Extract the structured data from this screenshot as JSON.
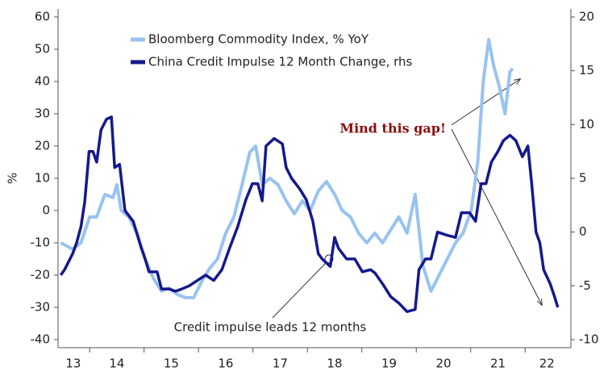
{
  "chart_data": {
    "type": "line",
    "ylabel": "%",
    "xlim": [
      13.42,
      22.84
    ],
    "xticks": [
      {
        "value": 13.7,
        "label": "13"
      },
      {
        "value": 14.5,
        "label": "14"
      },
      {
        "value": 15.5,
        "label": "15"
      },
      {
        "value": 16.5,
        "label": "16"
      },
      {
        "value": 17.5,
        "label": "17"
      },
      {
        "value": 18.5,
        "label": "18"
      },
      {
        "value": 19.5,
        "label": "19"
      },
      {
        "value": 20.5,
        "label": "20"
      },
      {
        "value": 21.5,
        "label": "21"
      },
      {
        "value": 22.4,
        "label": "22"
      }
    ],
    "xtick_marks": [
      14,
      15,
      16,
      17,
      18,
      19,
      20,
      21,
      22
    ],
    "ylim": [
      -42.5,
      62.5
    ],
    "yticks": [
      -40,
      -30,
      -20,
      -10,
      0,
      10,
      20,
      30,
      40,
      50,
      60
    ],
    "y2lim": [
      -10.75,
      20.75
    ],
    "y2ticks": [
      -10,
      -5,
      0,
      5,
      10,
      15,
      20
    ],
    "legend": "upper left",
    "annotations": [
      "Mind this gap!",
      "Credit impulse leads 12 months"
    ],
    "series": [
      {
        "name": "Bloomberg Commodity Index, % YoY",
        "color": "#98c3f0",
        "x": [
          13.47,
          13.69,
          13.84,
          14.0,
          14.13,
          14.28,
          14.43,
          14.5,
          14.58,
          14.72,
          14.87,
          15.02,
          15.17,
          15.32,
          15.46,
          15.61,
          15.76,
          15.91,
          16.06,
          16.2,
          16.35,
          16.5,
          16.65,
          16.8,
          16.94,
          17.05,
          17.17,
          17.31,
          17.46,
          17.61,
          17.76,
          17.91,
          18.05,
          18.2,
          18.35,
          18.5,
          18.64,
          18.79,
          18.94,
          19.09,
          19.24,
          19.38,
          19.53,
          19.68,
          19.83,
          19.98,
          20.12,
          20.27,
          20.42,
          20.57,
          20.72,
          20.86,
          21.01,
          21.13,
          21.23,
          21.33,
          21.42,
          21.53,
          21.63,
          21.72,
          21.77
        ],
        "values": [
          -10,
          -12,
          -10,
          -2,
          -2,
          5,
          4,
          8,
          0,
          -2,
          -7,
          -15,
          -21,
          -25,
          -24,
          -26,
          -27,
          -27,
          -22,
          -18,
          -15,
          -7,
          -2,
          8,
          18,
          20,
          8,
          10,
          8,
          3,
          -1,
          3,
          0,
          6,
          9,
          5,
          0,
          -2,
          -7,
          -10,
          -7,
          -10,
          -6,
          -2,
          -7,
          5,
          -17,
          -25,
          -20,
          -15,
          -10,
          -7,
          0,
          15,
          40,
          53,
          45,
          38,
          30,
          43,
          44
        ]
      },
      {
        "name": "China Credit Impulse 12 Month Change, rhs",
        "color": "#15198c",
        "axis": "y2",
        "x": [
          13.47,
          13.54,
          13.69,
          13.76,
          13.84,
          13.91,
          13.99,
          14.06,
          14.13,
          14.21,
          14.31,
          14.4,
          14.46,
          14.55,
          14.65,
          14.8,
          14.95,
          15.02,
          15.09,
          15.24,
          15.32,
          15.46,
          15.58,
          15.69,
          15.83,
          15.98,
          16.13,
          16.28,
          16.43,
          16.57,
          16.72,
          16.87,
          16.99,
          17.09,
          17.17,
          17.24,
          17.39,
          17.54,
          17.61,
          17.71,
          17.86,
          17.98,
          18.1,
          18.2,
          18.27,
          18.42,
          18.5,
          18.57,
          18.72,
          18.87,
          19.01,
          19.16,
          19.24,
          19.38,
          19.53,
          19.68,
          19.83,
          19.98,
          20.05,
          20.17,
          20.27,
          20.39,
          20.57,
          20.72,
          20.83,
          20.98,
          21.09,
          21.19,
          21.28,
          21.38,
          21.5,
          21.6,
          21.72,
          21.83,
          21.95,
          22.05,
          22.12,
          22.2,
          22.27,
          22.34,
          22.46,
          22.54,
          22.6
        ],
        "values": [
          -4,
          -3.5,
          -2,
          -1,
          0.5,
          2.8,
          7.5,
          7.5,
          6.5,
          9.5,
          10.5,
          10.7,
          6,
          6.3,
          2,
          1,
          -1.5,
          -2.5,
          -3.7,
          -3.7,
          -5.3,
          -5.3,
          -5.5,
          -5.3,
          -5,
          -4.5,
          -4,
          -4.5,
          -3.5,
          -1.5,
          0.5,
          3,
          4.5,
          4.5,
          2.9,
          8,
          8.7,
          8.2,
          6,
          5,
          4,
          3,
          1,
          -2,
          -2.5,
          -3.2,
          -0.5,
          -1.5,
          -2.5,
          -2.5,
          -3.7,
          -3.5,
          -3.8,
          -4.8,
          -6,
          -6.6,
          -7.4,
          -7.2,
          -3.5,
          -2.5,
          -2.5,
          0,
          -0.3,
          -0.5,
          1.8,
          1.8,
          1,
          4.5,
          4.5,
          6.5,
          7.5,
          8.5,
          9,
          8.5,
          7,
          8,
          4.5,
          0,
          -1,
          -3.5,
          -4.8,
          -6,
          -7
        ]
      }
    ]
  }
}
